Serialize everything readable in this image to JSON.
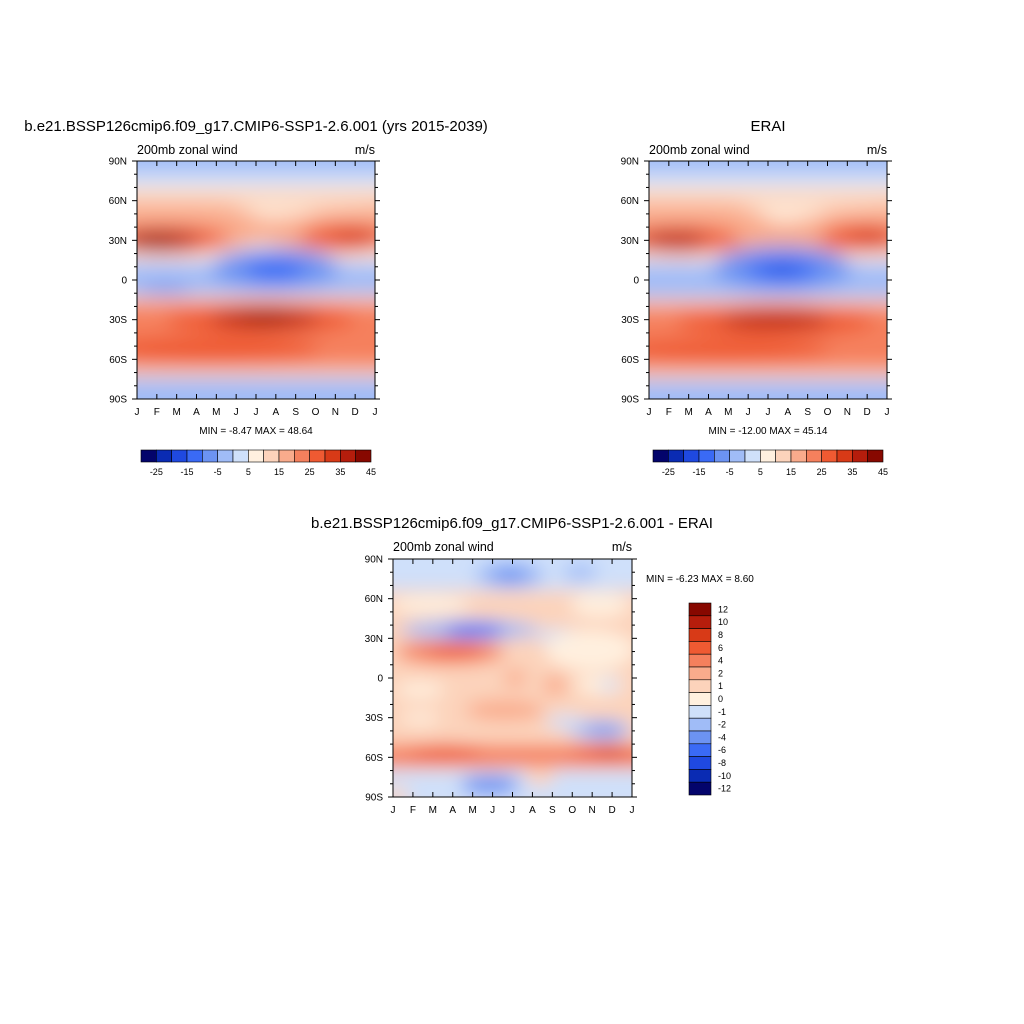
{
  "panels": [
    {
      "title": "b.e21.BSSP126cmip6.f09_g17.CMIP6-SSP1-2.6.001 (yrs 2015-2039)",
      "left_label": "200mb zonal wind",
      "right_label": "m/s",
      "minmax": "MIN =  -8.47 MAX =  48.64"
    },
    {
      "title": "ERAI",
      "left_label": "200mb zonal wind",
      "right_label": "m/s",
      "minmax": "MIN = -12.00 MAX =  45.14"
    },
    {
      "title": "b.e21.BSSP126cmip6.f09_g17.CMIP6-SSP1-2.6.001 - ERAI",
      "left_label": "200mb zonal wind",
      "right_label": "m/s",
      "minmax": "MIN =  -6.23 MAX =   8.60"
    }
  ],
  "chart_data": [
    {
      "type": "heatmap",
      "title": "b.e21.BSSP126cmip6.f09_g17.CMIP6-SSP1-2.6.001 (yrs 2015-2039)",
      "x_ticks": [
        "J",
        "F",
        "M",
        "A",
        "M",
        "J",
        "J",
        "A",
        "S",
        "O",
        "N",
        "D",
        "J"
      ],
      "y_ticks": [
        "90N",
        "60N",
        "30N",
        "0",
        "30S",
        "60S",
        "90S"
      ],
      "xlim": [
        0,
        12
      ],
      "ylim": [
        -90,
        90
      ],
      "units": "m/s",
      "min": -8.47,
      "max": 48.64,
      "colorbar_labels": [
        "-25",
        "-15",
        "-5",
        "5",
        "15",
        "25",
        "35",
        "45"
      ],
      "colors": [
        "#03046b",
        "#0a2bb3",
        "#1f49e0",
        "#3a6af5",
        "#6c93f2",
        "#a0bcf7",
        "#cfe0fa",
        "#fff0df",
        "#fcd3bb",
        "#f9ab8c",
        "#f5805d",
        "#ef5a32",
        "#d83a17",
        "#b51d0c",
        "#870800"
      ],
      "features": [
        {
          "x": 0.5,
          "y": 28,
          "value": 48.6
        },
        {
          "x": 10.8,
          "y": 32,
          "value": 37
        },
        {
          "x": 5.8,
          "y": -30,
          "value": 44
        },
        {
          "x": 4.6,
          "y": 5,
          "value": -8.5
        },
        {
          "x": 6,
          "y": -50,
          "value": 31
        }
      ]
    },
    {
      "type": "heatmap",
      "title": "ERAI",
      "x_ticks": [
        "J",
        "F",
        "M",
        "A",
        "M",
        "J",
        "J",
        "A",
        "S",
        "O",
        "N",
        "D",
        "J"
      ],
      "y_ticks": [
        "90N",
        "60N",
        "30N",
        "0",
        "30S",
        "60S",
        "90S"
      ],
      "xlim": [
        0,
        12
      ],
      "ylim": [
        -90,
        90
      ],
      "units": "m/s",
      "min": -12.0,
      "max": 45.14,
      "colorbar_labels": [
        "-25",
        "-15",
        "-5",
        "5",
        "15",
        "25",
        "35",
        "45"
      ],
      "colors": [
        "#03046b",
        "#0a2bb3",
        "#1f49e0",
        "#3a6af5",
        "#6c93f2",
        "#a0bcf7",
        "#cfe0fa",
        "#fff0df",
        "#fcd3bb",
        "#f9ab8c",
        "#f5805d",
        "#ef5a32",
        "#d83a17",
        "#b51d0c",
        "#870800"
      ],
      "features": [
        {
          "x": 0.8,
          "y": 28,
          "value": 40
        },
        {
          "x": 11,
          "y": 32,
          "value": 37
        },
        {
          "x": 6.5,
          "y": -30,
          "value": 42
        },
        {
          "x": 6.8,
          "y": 5,
          "value": -12
        },
        {
          "x": 6.5,
          "y": -50,
          "value": 30
        }
      ]
    },
    {
      "type": "heatmap",
      "title": "b.e21.BSSP126cmip6.f09_g17.CMIP6-SSP1-2.6.001 - ERAI",
      "x_ticks": [
        "J",
        "F",
        "M",
        "A",
        "M",
        "J",
        "J",
        "A",
        "S",
        "O",
        "N",
        "D",
        "J"
      ],
      "y_ticks": [
        "90N",
        "60N",
        "30N",
        "0",
        "30S",
        "60S",
        "90S"
      ],
      "xlim": [
        0,
        12
      ],
      "ylim": [
        -90,
        90
      ],
      "units": "m/s",
      "min": -6.23,
      "max": 8.6,
      "colorbar_labels": [
        "12",
        "10",
        "8",
        "6",
        "4",
        "2",
        "1",
        "0",
        "-1",
        "-2",
        "-4",
        "-6",
        "-8",
        "-10",
        "-12"
      ],
      "colors": [
        "#870800",
        "#b51d0c",
        "#d83a17",
        "#ef5a32",
        "#f5805d",
        "#f9ab8c",
        "#fcd3bb",
        "#fff0df",
        "#cfe0fa",
        "#a0bcf7",
        "#6c93f2",
        "#3a6af5",
        "#1f49e0",
        "#0a2bb3",
        "#03046b"
      ],
      "features": [
        {
          "x": 1.5,
          "y": 20,
          "value": 6
        },
        {
          "x": 4,
          "y": 20,
          "value": 8.6
        },
        {
          "x": 4.5,
          "y": 36,
          "value": -6.2
        },
        {
          "x": 5,
          "y": 78,
          "value": -4
        },
        {
          "x": 3,
          "y": -58,
          "value": 6
        },
        {
          "x": 10.5,
          "y": -58,
          "value": 6
        },
        {
          "x": 10.5,
          "y": -38,
          "value": -3
        },
        {
          "x": 5,
          "y": -82,
          "value": -3
        },
        {
          "x": 6.5,
          "y": -20,
          "value": 4
        }
      ]
    }
  ]
}
